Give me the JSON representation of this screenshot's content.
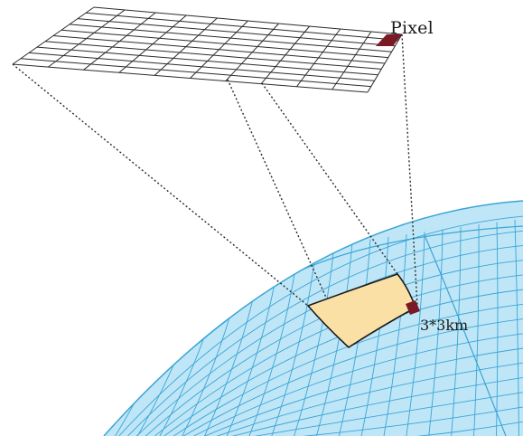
{
  "labels": {
    "pixel": "Pixel",
    "footprint_size": "3*3km"
  },
  "colors": {
    "globe_fill": "#bfe6f7",
    "globe_grid": "#3aa4d6",
    "grid_line": "#2b2b2b",
    "pixel_highlight": "#7a1a24",
    "footprint_fill": "#fbe0a6",
    "footprint_outline": "#1a1a1a",
    "projection_line": "#2b2b2b"
  },
  "sensor_grid": {
    "rows": 10,
    "cols": 10
  }
}
